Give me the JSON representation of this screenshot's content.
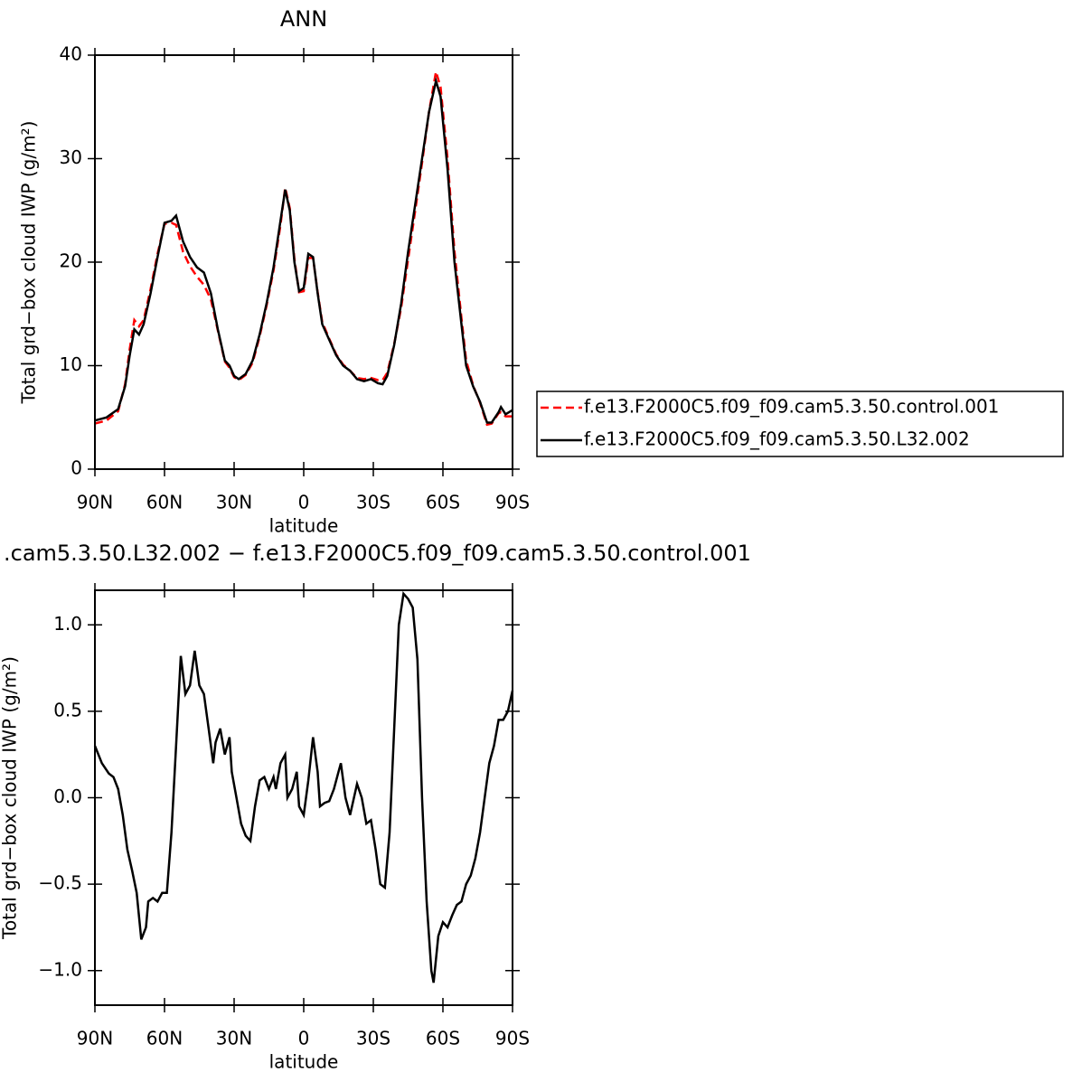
{
  "chart_data": [
    {
      "type": "line",
      "title": "ANN",
      "x_label": "latitude",
      "y_label": "Total grd−box cloud IWP (g/m²)",
      "xlim": [
        90,
        -90
      ],
      "xticks": [
        {
          "value": 90,
          "label": "90N"
        },
        {
          "value": 60,
          "label": "60N"
        },
        {
          "value": 30,
          "label": "30N"
        },
        0,
        {
          "value": -30,
          "label": "30S"
        },
        {
          "value": -60,
          "label": "60S"
        },
        {
          "value": -90,
          "label": "90S"
        }
      ],
      "ylim": [
        0,
        40
      ],
      "yticks": [
        0,
        10,
        20,
        30,
        40
      ],
      "legend": "right",
      "x": [
        90,
        85,
        80,
        77,
        75,
        73,
        71,
        69,
        66,
        63,
        60,
        57,
        55,
        52,
        49,
        46,
        43,
        40,
        37,
        34,
        32,
        30,
        28,
        25,
        22,
        19,
        16,
        13,
        10,
        8,
        6,
        4,
        2,
        0,
        -2,
        -4,
        -6,
        -8,
        -11,
        -14,
        -17,
        -20,
        -23,
        -26,
        -29,
        -32,
        -34,
        -36,
        -39,
        -42,
        -45,
        -48,
        -51,
        -54,
        -57,
        -59,
        -62,
        -65,
        -68,
        -70,
        -73,
        -76,
        -79,
        -81,
        -84,
        -85,
        -87,
        -90
      ],
      "series": [
        {
          "name": "f.e13.F2000C5.f09_f09.cam5.3.50.control.001",
          "color": "#ff0000",
          "style": "dashed",
          "values": [
            4.4,
            4.7,
            5.6,
            8.2,
            11.6,
            14.4,
            13.8,
            14.4,
            17.4,
            20.8,
            23.7,
            23.8,
            23.6,
            21.0,
            19.6,
            18.6,
            17.8,
            16.4,
            13.4,
            10.4,
            9.8,
            8.9,
            8.6,
            9.1,
            10.3,
            12.8,
            15.8,
            19.2,
            23.6,
            27.2,
            25.2,
            20.3,
            17.1,
            17.2,
            20.4,
            20.4,
            17.1,
            14.2,
            12.6,
            11.1,
            10.1,
            9.5,
            8.8,
            8.7,
            8.8,
            8.6,
            8.6,
            9.3,
            12.1,
            15.6,
            20.3,
            24.9,
            29.6,
            34.5,
            38.4,
            36.9,
            30.0,
            21.0,
            14.6,
            10.5,
            8.1,
            6.4,
            4.3,
            4.4,
            5.4,
            5.5,
            5.1,
            5.1
          ]
        },
        {
          "name": "f.e13.F2000C5.f09_f09.cam5.3.50.L32.002",
          "color": "#000000",
          "style": "solid",
          "values": [
            4.7,
            5.0,
            5.8,
            8.0,
            11.0,
            13.5,
            13.0,
            14.0,
            17.0,
            20.5,
            23.8,
            24.0,
            24.5,
            22.0,
            20.5,
            19.5,
            19.0,
            17.0,
            13.5,
            10.5,
            10.0,
            9.0,
            8.7,
            9.2,
            10.5,
            13.0,
            16.0,
            19.5,
            24.0,
            27.0,
            25.0,
            20.0,
            17.2,
            17.5,
            20.8,
            20.5,
            17.0,
            14.0,
            12.5,
            11.0,
            10.0,
            9.5,
            8.7,
            8.5,
            8.7,
            8.3,
            8.2,
            9.0,
            12.0,
            16.0,
            21.0,
            25.5,
            30.0,
            34.5,
            37.5,
            36.0,
            29.0,
            20.0,
            14.0,
            10.0,
            8.0,
            6.5,
            4.5,
            4.5,
            5.5,
            6.0,
            5.3,
            5.7
          ]
        }
      ]
    },
    {
      "type": "line",
      "title": ".cam5.3.50.L32.002 − f.e13.F2000C5.f09_f09.cam5.3.50.control.001",
      "x_label": "latitude",
      "y_label": "Total grd−box cloud IWP (g/m²)",
      "xlim": [
        90,
        -90
      ],
      "xticks": [
        {
          "value": 90,
          "label": "90N"
        },
        {
          "value": 60,
          "label": "60N"
        },
        {
          "value": 30,
          "label": "30N"
        },
        0,
        {
          "value": -30,
          "label": "30S"
        },
        {
          "value": -60,
          "label": "60S"
        },
        {
          "value": -90,
          "label": "90S"
        }
      ],
      "ylim": [
        -1.2,
        1.2
      ],
      "yticks": [
        {
          "value": -1,
          "label": "−1.0"
        },
        {
          "value": -0.5,
          "label": "−0.5"
        },
        {
          "value": 0,
          "label": "0.0"
        },
        0.5,
        {
          "value": 1,
          "label": "1.0"
        }
      ],
      "x": [
        90,
        87,
        84,
        82,
        80,
        78,
        76,
        74,
        72,
        70,
        68,
        67,
        65,
        63,
        61,
        59,
        57,
        55,
        53,
        51,
        49,
        47,
        45,
        43,
        41,
        39,
        38,
        36,
        34,
        32,
        31,
        29,
        27,
        25,
        23,
        21,
        19,
        17,
        15,
        13,
        12,
        10,
        8,
        7,
        5,
        3,
        2,
        0,
        -2,
        -4,
        -6,
        -7,
        -9,
        -11,
        -13,
        -15,
        -16,
        -18,
        -20,
        -23,
        -25,
        -27,
        -29,
        -31,
        -33,
        -35,
        -37,
        -39,
        -41,
        -43,
        -45,
        -47,
        -49,
        -51,
        -53,
        -55,
        -56,
        -58,
        -60,
        -62,
        -64,
        -66,
        -68,
        -70,
        -72,
        -74,
        -76,
        -78,
        -80,
        -82,
        -84,
        -86,
        -88,
        -90
      ],
      "series": [
        {
          "color": "#000000",
          "style": "solid",
          "values": [
            0.3,
            0.2,
            0.14,
            0.12,
            0.05,
            -0.1,
            -0.3,
            -0.42,
            -0.55,
            -0.82,
            -0.75,
            -0.6,
            -0.58,
            -0.6,
            -0.55,
            -0.55,
            -0.2,
            0.3,
            0.82,
            0.6,
            0.65,
            0.85,
            0.65,
            0.6,
            0.4,
            0.2,
            0.32,
            0.4,
            0.25,
            0.35,
            0.15,
            0.0,
            -0.15,
            -0.22,
            -0.25,
            -0.05,
            0.1,
            0.12,
            0.05,
            0.12,
            0.05,
            0.2,
            0.25,
            0.0,
            0.05,
            0.15,
            -0.05,
            -0.1,
            0.1,
            0.35,
            0.15,
            -0.05,
            -0.03,
            -0.02,
            0.05,
            0.15,
            0.2,
            0.0,
            -0.1,
            0.08,
            0.0,
            -0.15,
            -0.13,
            -0.3,
            -0.5,
            -0.52,
            -0.2,
            0.4,
            1.0,
            1.18,
            1.15,
            1.1,
            0.8,
            0.0,
            -0.6,
            -1.0,
            -1.07,
            -0.8,
            -0.72,
            -0.75,
            -0.68,
            -0.62,
            -0.6,
            -0.5,
            -0.45,
            -0.35,
            -0.2,
            0.0,
            0.2,
            0.3,
            0.45,
            0.45,
            0.5,
            0.62
          ]
        }
      ]
    }
  ]
}
